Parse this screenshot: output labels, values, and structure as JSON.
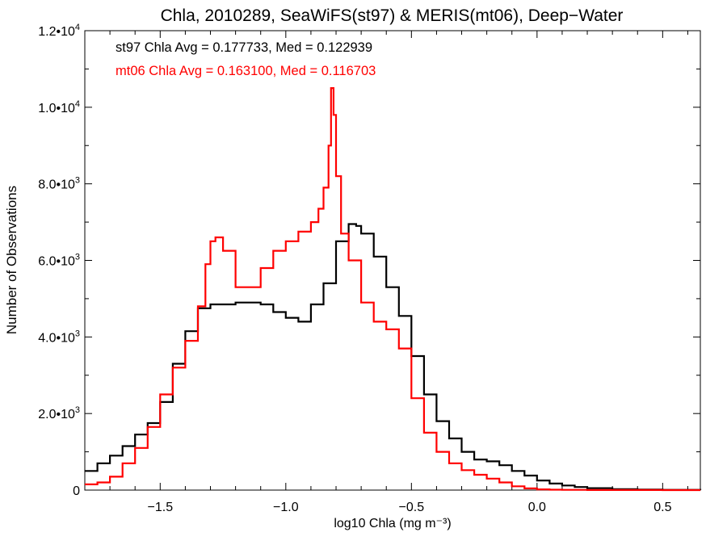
{
  "chart_data": {
    "type": "line",
    "title": "Chla, 2010289, SeaWiFS(st97) & MERIS(mt06), Deep−Water",
    "xlabel": "log10 Chla (mg m⁻³)",
    "ylabel": "Number of Observations",
    "xlim": [
      -1.8,
      0.65
    ],
    "ylim": [
      0,
      12000
    ],
    "x_ticks": [
      {
        "value": -1.5,
        "label": "−1.5"
      },
      {
        "value": -1.0,
        "label": "−1.0"
      },
      {
        "value": -0.5,
        "label": "−0.5"
      },
      {
        "value": 0.0,
        "label": "0.0"
      },
      {
        "value": 0.5,
        "label": "0.5"
      }
    ],
    "y_ticks": [
      {
        "value": 0,
        "mant": "0",
        "exp": ""
      },
      {
        "value": 2000,
        "mant": "2.0•10",
        "exp": "3"
      },
      {
        "value": 4000,
        "mant": "4.0•10",
        "exp": "3"
      },
      {
        "value": 6000,
        "mant": "6.0•10",
        "exp": "3"
      },
      {
        "value": 8000,
        "mant": "8.0•10",
        "exp": "3"
      },
      {
        "value": 10000,
        "mant": "1.0•10",
        "exp": "4"
      },
      {
        "value": 12000,
        "mant": "1.2•10",
        "exp": "4"
      }
    ],
    "annotations": [
      {
        "text": "st97 Chla Avg = 0.177733, Med = 0.122939",
        "color": "#000000"
      },
      {
        "text": "mt06 Chla Avg = 0.163100, Med = 0.116703",
        "color": "#ff0000"
      }
    ],
    "series": [
      {
        "color": "#000000",
        "x": [
          -1.8,
          -1.75,
          -1.7,
          -1.65,
          -1.6,
          -1.55,
          -1.5,
          -1.45,
          -1.4,
          -1.35,
          -1.3,
          -1.25,
          -1.2,
          -1.15,
          -1.1,
          -1.05,
          -1.0,
          -0.95,
          -0.9,
          -0.85,
          -0.8,
          -0.75,
          -0.72,
          -0.7,
          -0.65,
          -0.6,
          -0.55,
          -0.5,
          -0.45,
          -0.4,
          -0.35,
          -0.3,
          -0.25,
          -0.2,
          -0.15,
          -0.1,
          -0.05,
          0.0,
          0.05,
          0.1,
          0.15,
          0.2,
          0.3,
          0.4,
          0.5,
          0.65
        ],
        "y": [
          500,
          700,
          900,
          1150,
          1450,
          1750,
          2300,
          3300,
          4150,
          4750,
          4850,
          4850,
          4900,
          4900,
          4850,
          4650,
          4500,
          4400,
          4850,
          5400,
          6500,
          6950,
          6900,
          6700,
          6100,
          5300,
          4550,
          3500,
          2500,
          1800,
          1350,
          1000,
          800,
          750,
          650,
          500,
          380,
          250,
          170,
          120,
          80,
          50,
          25,
          12,
          6,
          2
        ]
      },
      {
        "color": "#ff0000",
        "x": [
          -1.8,
          -1.75,
          -1.7,
          -1.65,
          -1.6,
          -1.55,
          -1.5,
          -1.45,
          -1.4,
          -1.35,
          -1.32,
          -1.3,
          -1.28,
          -1.25,
          -1.2,
          -1.15,
          -1.1,
          -1.05,
          -1.0,
          -0.95,
          -0.9,
          -0.87,
          -0.85,
          -0.83,
          -0.82,
          -0.81,
          -0.8,
          -0.78,
          -0.75,
          -0.7,
          -0.65,
          -0.6,
          -0.55,
          -0.5,
          -0.45,
          -0.4,
          -0.35,
          -0.3,
          -0.25,
          -0.2,
          -0.15,
          -0.1,
          -0.05,
          0.0,
          0.05,
          0.1,
          0.2,
          0.3,
          0.5,
          0.65
        ],
        "y": [
          150,
          200,
          350,
          700,
          1100,
          1650,
          2500,
          3200,
          3900,
          4800,
          5900,
          6500,
          6600,
          6250,
          5300,
          5300,
          5800,
          6250,
          6500,
          6750,
          7000,
          7350,
          7900,
          9000,
          10500,
          9800,
          8200,
          6700,
          6000,
          4900,
          4400,
          4200,
          3700,
          2400,
          1500,
          1000,
          700,
          520,
          400,
          300,
          200,
          100,
          45,
          20,
          10,
          6,
          3,
          2,
          1,
          0
        ]
      }
    ]
  }
}
